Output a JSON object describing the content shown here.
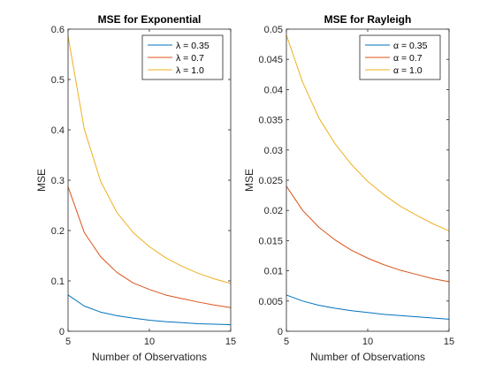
{
  "chart_data": [
    {
      "type": "line",
      "title": "MSE for Exponential",
      "xlabel": "Number of Observations",
      "ylabel": "MSE",
      "xlim": [
        5,
        15
      ],
      "ylim": [
        0,
        0.6
      ],
      "xticks": [
        5,
        10,
        15
      ],
      "yticks": [
        0,
        0.1,
        0.2,
        0.3,
        0.4,
        0.5,
        0.6
      ],
      "ytick_labels": [
        "0",
        "0.1",
        "0.2",
        "0.3",
        "0.4",
        "0.5",
        "0.6"
      ],
      "legend_position": "top-right",
      "x": [
        5,
        6,
        7,
        8,
        9,
        10,
        11,
        12,
        13,
        14,
        15
      ],
      "series": [
        {
          "name": "λ = 0.35",
          "color": "#0072BD",
          "values": [
            0.072,
            0.05,
            0.038,
            0.031,
            0.026,
            0.022,
            0.019,
            0.017,
            0.015,
            0.014,
            0.013
          ]
        },
        {
          "name": "λ = 0.7",
          "color": "#D95319",
          "values": [
            0.287,
            0.196,
            0.148,
            0.117,
            0.096,
            0.083,
            0.072,
            0.065,
            0.058,
            0.052,
            0.047
          ]
        },
        {
          "name": "λ = 1.0",
          "color": "#EDB120",
          "values": [
            0.586,
            0.401,
            0.298,
            0.236,
            0.196,
            0.168,
            0.146,
            0.129,
            0.115,
            0.104,
            0.095
          ]
        }
      ]
    },
    {
      "type": "line",
      "title": "MSE for Rayleigh",
      "xlabel": "Number of Observations",
      "ylabel": "MSE",
      "xlim": [
        5,
        15
      ],
      "ylim": [
        0,
        0.05
      ],
      "xticks": [
        5,
        10,
        15
      ],
      "yticks": [
        0,
        0.005,
        0.01,
        0.015,
        0.02,
        0.025,
        0.03,
        0.035,
        0.04,
        0.045,
        0.05
      ],
      "ytick_labels": [
        "0",
        "0.005",
        "0.01",
        "0.015",
        "0.02",
        "0.025",
        "0.03",
        "0.035",
        "0.04",
        "0.045",
        "0.05"
      ],
      "legend_position": "top-right",
      "x": [
        5,
        6,
        7,
        8,
        9,
        10,
        11,
        12,
        13,
        14,
        15
      ],
      "series": [
        {
          "name": "α = 0.35",
          "color": "#0072BD",
          "values": [
            0.006,
            0.005,
            0.0043,
            0.0038,
            0.0034,
            0.0031,
            0.0028,
            0.0026,
            0.0024,
            0.0022,
            0.002
          ]
        },
        {
          "name": "α = 0.7",
          "color": "#D95319",
          "values": [
            0.024,
            0.02,
            0.0172,
            0.0151,
            0.0134,
            0.0121,
            0.011,
            0.0101,
            0.0094,
            0.0087,
            0.0082
          ]
        },
        {
          "name": "α = 1.0",
          "color": "#EDB120",
          "values": [
            0.049,
            0.0412,
            0.0353,
            0.031,
            0.0276,
            0.0248,
            0.0226,
            0.0207,
            0.0192,
            0.0178,
            0.0166
          ]
        }
      ]
    }
  ]
}
